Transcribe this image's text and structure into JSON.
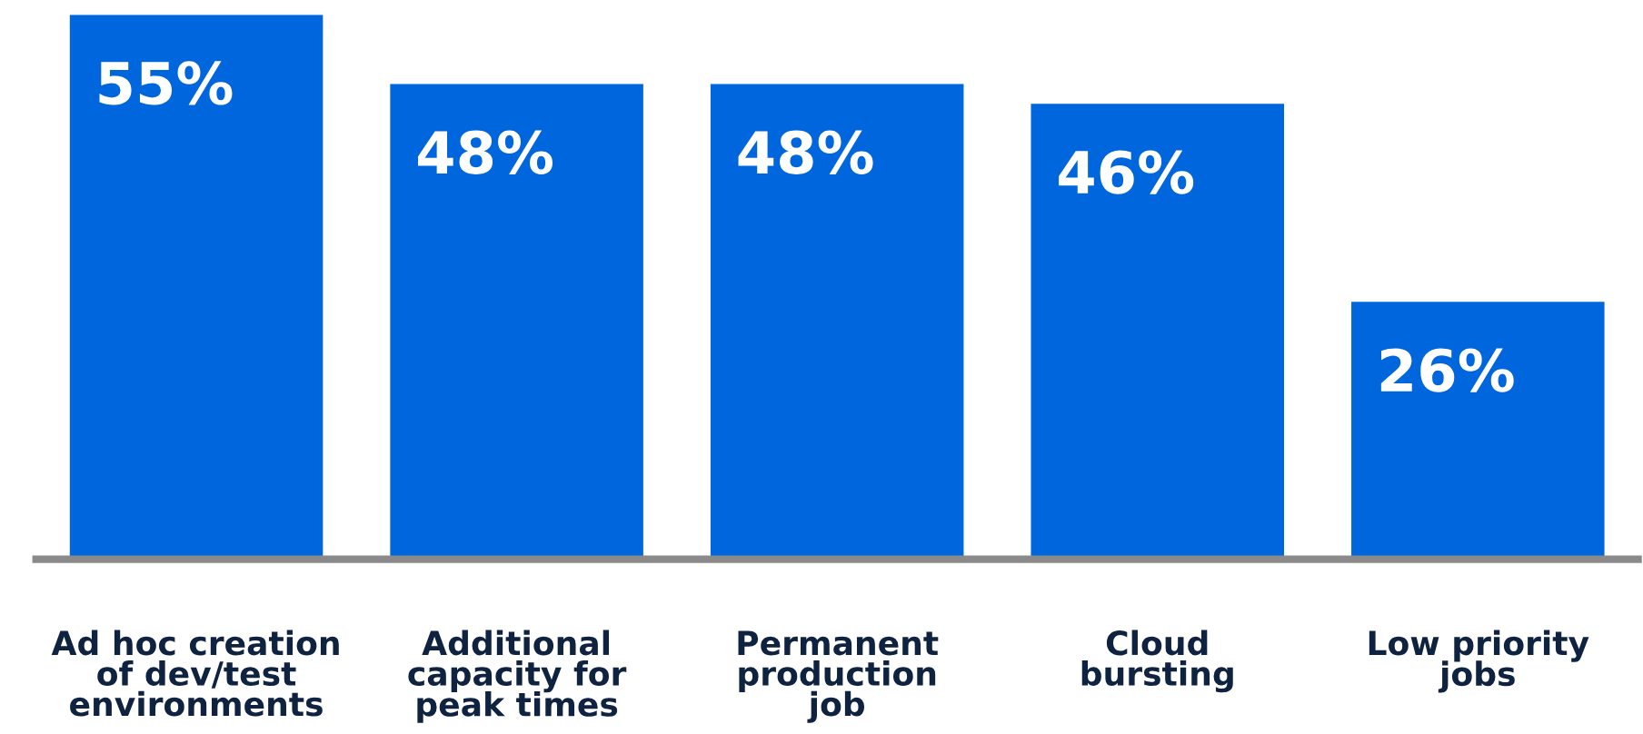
{
  "chart_data": {
    "type": "bar",
    "categories": [
      "Ad hoc creation\nof dev/test\nenvironments",
      "Additional\ncapacity for\npeak times",
      "Permanent\nproduction\njob",
      "Cloud\nbursting",
      "Low priority\njobs"
    ],
    "values": [
      55,
      48,
      48,
      46,
      26
    ],
    "value_labels": [
      "55%",
      "48%",
      "48%",
      "46%",
      "26%"
    ],
    "color": "#0066dd",
    "grid": false
  }
}
